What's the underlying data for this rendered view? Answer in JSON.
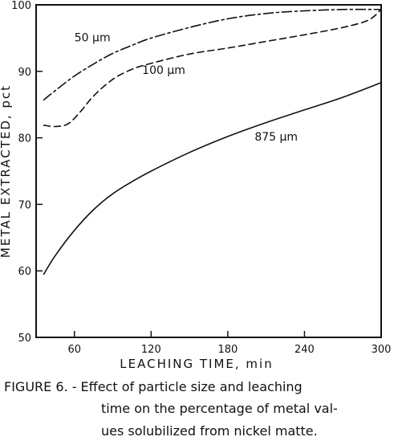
{
  "chart_data": {
    "type": "line",
    "title": "",
    "xlabel": "LEACHING TIME, min",
    "ylabel": "METAL EXTRACTED, pct",
    "xlim": [
      30,
      300
    ],
    "ylim": [
      50,
      100
    ],
    "xticks": [
      60,
      120,
      180,
      240,
      300
    ],
    "yticks": [
      50,
      60,
      70,
      80,
      90,
      100
    ],
    "grid": false,
    "legend": "none",
    "series": [
      {
        "name": "50 µm",
        "style": "dash-dot",
        "x": [
          36,
          45,
          60,
          75,
          90,
          105,
          120,
          150,
          180,
          210,
          240,
          270,
          300
        ],
        "y": [
          85.7,
          87.1,
          89.3,
          91.1,
          92.7,
          93.9,
          95.0,
          96.6,
          97.9,
          98.7,
          99.1,
          99.3,
          99.3
        ]
      },
      {
        "name": "100 µm",
        "style": "dashed",
        "x": [
          36,
          45,
          55,
          65,
          75,
          90,
          105,
          120,
          150,
          180,
          210,
          240,
          270,
          290,
          300
        ],
        "y": [
          81.9,
          81.7,
          82.1,
          84.0,
          86.3,
          88.8,
          90.3,
          91.2,
          92.6,
          93.5,
          94.5,
          95.5,
          96.6,
          97.7,
          99.3
        ]
      },
      {
        "name": "875 µm",
        "style": "solid",
        "x": [
          36,
          45,
          60,
          75,
          90,
          105,
          120,
          150,
          180,
          210,
          240,
          270,
          300
        ],
        "y": [
          59.5,
          62.3,
          66.1,
          69.2,
          71.6,
          73.4,
          75.0,
          77.8,
          80.2,
          82.3,
          84.2,
          86.1,
          88.3
        ]
      }
    ],
    "series_labels": [
      {
        "text": "50 µm",
        "x": 60,
        "y": 94.5
      },
      {
        "text": "100 µm",
        "x": 113,
        "y": 89.6
      },
      {
        "text": "875 µm",
        "x": 201,
        "y": 79.6
      }
    ]
  },
  "caption": {
    "lines": [
      "FIGURE 6. - Effect of particle size and leaching",
      "time on the percentage of metal val-",
      "ues solubilized from nickel matte."
    ]
  },
  "colors": {
    "ink": "#111111",
    "background": "#ffffff"
  }
}
